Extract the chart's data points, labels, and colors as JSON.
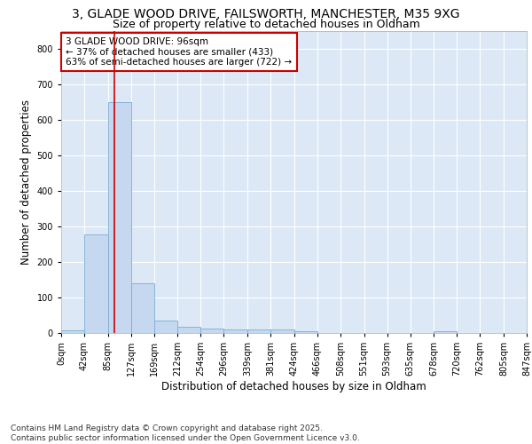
{
  "title_line1": "3, GLADE WOOD DRIVE, FAILSWORTH, MANCHESTER, M35 9XG",
  "title_line2": "Size of property relative to detached houses in Oldham",
  "xlabel": "Distribution of detached houses by size in Oldham",
  "ylabel": "Number of detached properties",
  "footnote": "Contains HM Land Registry data © Crown copyright and database right 2025.\nContains public sector information licensed under the Open Government Licence v3.0.",
  "annotation_title": "3 GLADE WOOD DRIVE: 96sqm",
  "annotation_line2": "← 37% of detached houses are smaller (433)",
  "annotation_line3": "63% of semi-detached houses are larger (722) →",
  "property_size": 96,
  "bin_edges": [
    0,
    42,
    85,
    127,
    169,
    212,
    254,
    296,
    339,
    381,
    424,
    466,
    508,
    551,
    593,
    635,
    678,
    720,
    762,
    805,
    847
  ],
  "bar_values": [
    8,
    278,
    650,
    140,
    35,
    18,
    12,
    11,
    10,
    9,
    5,
    0,
    0,
    0,
    0,
    0,
    5,
    0,
    0,
    0
  ],
  "bar_color": "#c5d8f0",
  "bar_edge_color": "#7aadd4",
  "vline_color": "#cc0000",
  "vline_x": 96,
  "ylim": [
    0,
    850
  ],
  "yticks": [
    0,
    100,
    200,
    300,
    400,
    500,
    600,
    700,
    800
  ],
  "bg_color": "#ffffff",
  "plot_bg_color": "#dce8f5",
  "grid_color": "#ffffff",
  "annotation_box_color": "#ffffff",
  "annotation_box_edge": "#cc0000",
  "title_fontsize": 10,
  "subtitle_fontsize": 9,
  "tick_label_fontsize": 7,
  "axis_label_fontsize": 8.5,
  "footnote_fontsize": 6.5
}
